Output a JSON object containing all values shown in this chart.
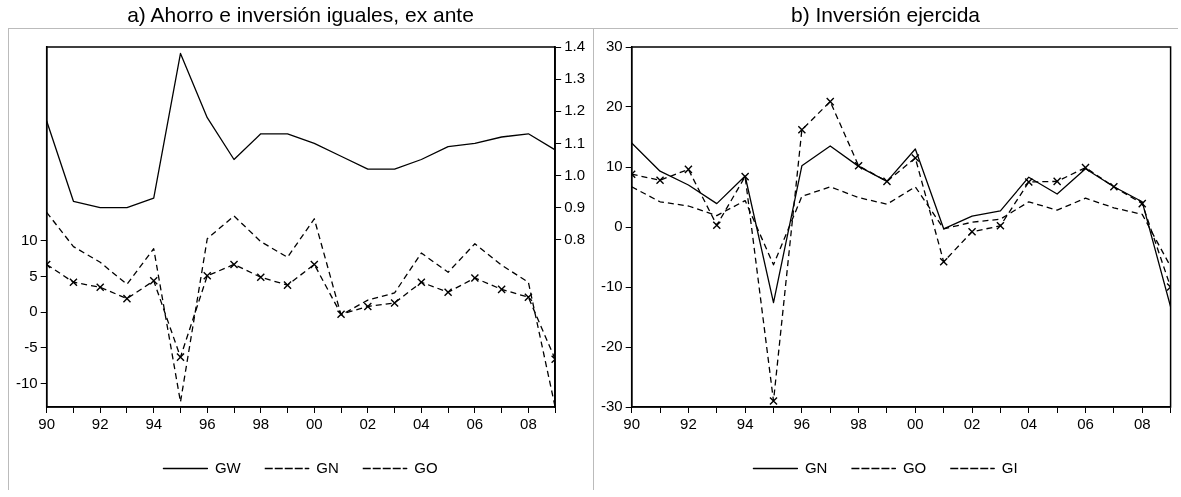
{
  "chart_data": [
    {
      "type": "line",
      "title": "a) Ahorro e inversión iguales, ex ante",
      "x": [
        1990,
        1991,
        1992,
        1993,
        1994,
        1995,
        1996,
        1997,
        1998,
        1999,
        2000,
        2001,
        2002,
        2003,
        2004,
        2005,
        2006,
        2007,
        2008,
        2009
      ],
      "series": [
        {
          "name": "GW",
          "color": "#000000",
          "axis": "y2",
          "line_style": "solid",
          "marker": "none",
          "values": [
            1.17,
            0.92,
            0.9,
            0.9,
            0.93,
            1.38,
            1.18,
            1.05,
            1.13,
            1.13,
            1.1,
            1.06,
            1.02,
            1.02,
            1.05,
            1.09,
            1.1,
            1.12,
            1.13,
            1.08
          ]
        },
        {
          "name": "GN",
          "color": "#000000",
          "line_style": "dashed",
          "marker": "none",
          "values": [
            14,
            9.2,
            7,
            3.9,
            8.9,
            -12.6,
            10.3,
            13.5,
            9.9,
            7.7,
            13.1,
            -0.4,
            1.7,
            2.7,
            8.3,
            5.6,
            9.6,
            6.6,
            4.2,
            -13.3
          ]
        },
        {
          "name": "GO",
          "color": "#000000",
          "line_style": "dashed",
          "marker": "cross",
          "values": [
            6.7,
            4.2,
            3.5,
            1.9,
            4.4,
            -6.3,
            5.1,
            6.7,
            4.9,
            3.8,
            6.7,
            -0.3,
            0.8,
            1.3,
            4.2,
            2.8,
            4.8,
            3.2,
            2.1,
            -6.6
          ]
        }
      ],
      "xlim": [
        1990,
        2009
      ],
      "xticks": [
        {
          "value": 1990,
          "label": "90"
        },
        {
          "value": 1991,
          "label": null
        },
        {
          "value": 1992,
          "label": "92"
        },
        {
          "value": 1993,
          "label": null
        },
        {
          "value": 1994,
          "label": "94"
        },
        {
          "value": 1995,
          "label": null
        },
        {
          "value": 1996,
          "label": "96"
        },
        {
          "value": 1997,
          "label": null
        },
        {
          "value": 1998,
          "label": "98"
        },
        {
          "value": 1999,
          "label": null
        },
        {
          "value": 2000,
          "label": "00"
        },
        {
          "value": 2001,
          "label": null
        },
        {
          "value": 2002,
          "label": "02"
        },
        {
          "value": 2003,
          "label": null
        },
        {
          "value": 2004,
          "label": "04"
        },
        {
          "value": 2005,
          "label": null
        },
        {
          "value": 2006,
          "label": "06"
        },
        {
          "value": 2007,
          "label": null
        },
        {
          "value": 2008,
          "label": "08"
        },
        {
          "value": 2009,
          "label": null
        }
      ],
      "ylim": [
        -13.3,
        37.2
      ],
      "yticks": [
        -10,
        -5,
        0,
        5,
        10
      ],
      "y2lim": [
        0.28,
        1.4
      ],
      "y2ticks": [
        {
          "value": 0.8,
          "label": "0.8"
        },
        {
          "value": 0.9,
          "label": "0.9"
        },
        {
          "value": 1,
          "label": "1.0"
        },
        {
          "value": 1.1,
          "label": "1.1"
        },
        {
          "value": 1.2,
          "label": "1.2"
        },
        {
          "value": 1.3,
          "label": "1.3"
        },
        {
          "value": 1.4,
          "label": "1.4"
        }
      ],
      "grid": false,
      "legend": "bottom"
    },
    {
      "type": "line",
      "title": "b) Inversión ejercida",
      "x": [
        1990,
        1991,
        1992,
        1993,
        1994,
        1995,
        1996,
        1997,
        1998,
        1999,
        2000,
        2001,
        2002,
        2003,
        2004,
        2005,
        2006,
        2007,
        2008,
        2009
      ],
      "series": [
        {
          "name": "GN",
          "color": "#000000",
          "line_style": "solid",
          "marker": "none",
          "values": [
            14,
            9.3,
            7,
            3.9,
            8.5,
            -12.6,
            10.2,
            13.5,
            10.1,
            7.6,
            13,
            -0.3,
            1.8,
            2.7,
            8.3,
            5.5,
            9.7,
            6.7,
            4.2,
            -13.3
          ]
        },
        {
          "name": "GO",
          "color": "#000000",
          "line_style": "dashed",
          "marker": "none",
          "values": [
            6.7,
            4.2,
            3.5,
            1.9,
            4.4,
            -6.3,
            5.1,
            6.7,
            4.9,
            3.8,
            6.7,
            -0.3,
            0.8,
            1.3,
            4.2,
            2.8,
            4.8,
            3.2,
            2.1,
            -6.6
          ]
        },
        {
          "name": "GI",
          "color": "#000000",
          "line_style": "dashed",
          "marker": "cross",
          "values": [
            8.8,
            7.8,
            9.6,
            0.3,
            8.4,
            -29,
            16.2,
            20.9,
            10.2,
            7.6,
            11.5,
            -5.8,
            -0.8,
            0.2,
            7.5,
            7.6,
            9.9,
            6.7,
            3.9,
            -10
          ]
        }
      ],
      "xlim": [
        1990,
        2009
      ],
      "xticks": [
        {
          "value": 1990,
          "label": "90"
        },
        {
          "value": 1991,
          "label": null
        },
        {
          "value": 1992,
          "label": "92"
        },
        {
          "value": 1993,
          "label": null
        },
        {
          "value": 1994,
          "label": "94"
        },
        {
          "value": 1995,
          "label": null
        },
        {
          "value": 1996,
          "label": "96"
        },
        {
          "value": 1997,
          "label": null
        },
        {
          "value": 1998,
          "label": "98"
        },
        {
          "value": 1999,
          "label": null
        },
        {
          "value": 2000,
          "label": "00"
        },
        {
          "value": 2001,
          "label": null
        },
        {
          "value": 2002,
          "label": "02"
        },
        {
          "value": 2003,
          "label": null
        },
        {
          "value": 2004,
          "label": "04"
        },
        {
          "value": 2005,
          "label": null
        },
        {
          "value": 2006,
          "label": "06"
        },
        {
          "value": 2007,
          "label": null
        },
        {
          "value": 2008,
          "label": "08"
        },
        {
          "value": 2009,
          "label": null
        }
      ],
      "ylim": [
        -30,
        30
      ],
      "yticks": [
        -30,
        -20,
        -10,
        0,
        10,
        20,
        30
      ],
      "grid": false,
      "legend": "bottom"
    }
  ]
}
